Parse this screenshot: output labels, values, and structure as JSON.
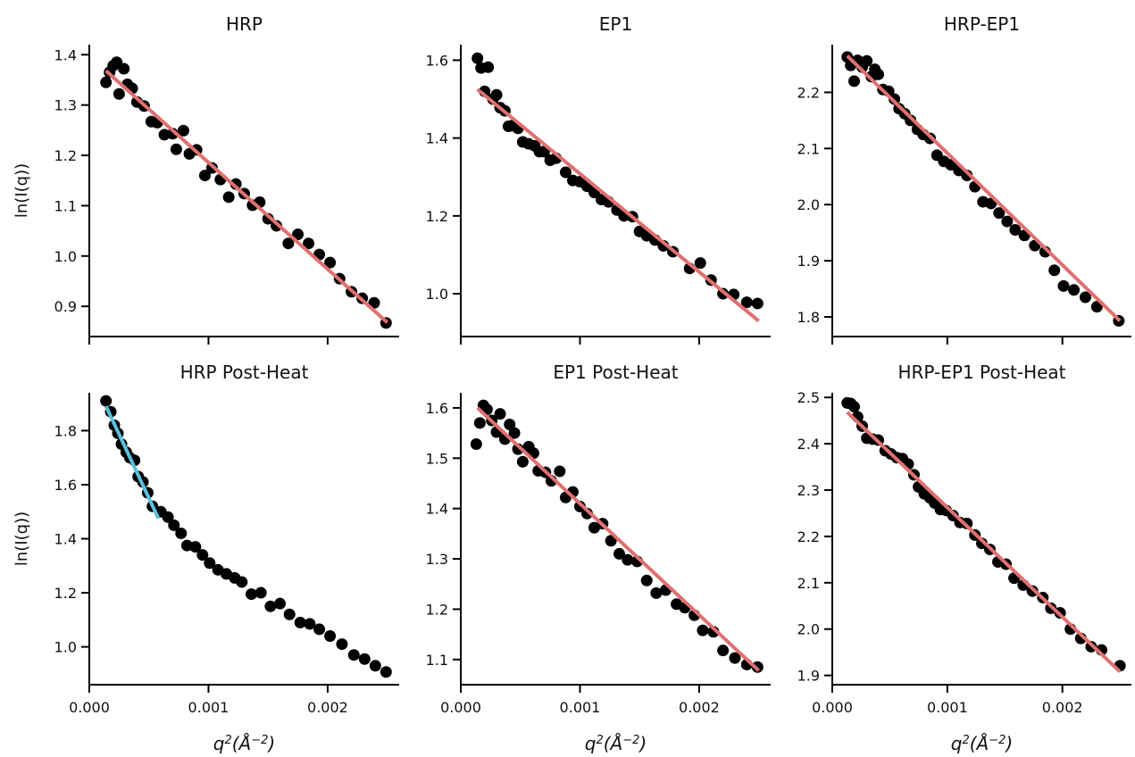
{
  "chart_data": [
    {
      "type": "scatter",
      "title": "HRP",
      "ylabel": "ln(I(q))",
      "xlabel": "",
      "xlim": [
        0.0,
        0.0026
      ],
      "ylim": [
        0.84,
        1.42
      ],
      "x_ticks": [
        0.0,
        0.001,
        0.002
      ],
      "x_tick_labels": [
        "",
        "",
        ""
      ],
      "y_ticks": [
        0.9,
        1.0,
        1.1,
        1.2,
        1.3,
        1.4
      ],
      "y_tick_labels": [
        "0.9",
        "1.0",
        "1.1",
        "1.2",
        "1.3",
        "1.4"
      ],
      "points": [
        [
          0.00014,
          1.345
        ],
        [
          0.00017,
          1.365
        ],
        [
          0.0002,
          1.378
        ],
        [
          0.00023,
          1.385
        ],
        [
          0.00025,
          1.322
        ],
        [
          0.00029,
          1.372
        ],
        [
          0.00032,
          1.341
        ],
        [
          0.00036,
          1.333
        ],
        [
          0.0004,
          1.306
        ],
        [
          0.00046,
          1.298
        ],
        [
          0.00052,
          1.267
        ],
        [
          0.00057,
          1.265
        ],
        [
          0.00063,
          1.241
        ],
        [
          0.0007,
          1.243
        ],
        [
          0.00073,
          1.212
        ],
        [
          0.00079,
          1.249
        ],
        [
          0.00084,
          1.203
        ],
        [
          0.0009,
          1.211
        ],
        [
          0.00097,
          1.16
        ],
        [
          0.00103,
          1.175
        ],
        [
          0.0011,
          1.152
        ],
        [
          0.00117,
          1.117
        ],
        [
          0.00123,
          1.143
        ],
        [
          0.0013,
          1.124
        ],
        [
          0.00137,
          1.101
        ],
        [
          0.00143,
          1.107
        ],
        [
          0.0015,
          1.074
        ],
        [
          0.00157,
          1.06
        ],
        [
          0.00167,
          1.025
        ],
        [
          0.00175,
          1.043
        ],
        [
          0.00184,
          1.025
        ],
        [
          0.00193,
          1.003
        ],
        [
          0.00202,
          0.987
        ],
        [
          0.0021,
          0.955
        ],
        [
          0.0022,
          0.929
        ],
        [
          0.00229,
          0.916
        ],
        [
          0.00239,
          0.907
        ],
        [
          0.00249,
          0.867
        ]
      ],
      "fits": [
        {
          "color": "#e07070",
          "x": [
            0.00014,
            0.0025
          ],
          "y": [
            1.368,
            0.868
          ]
        }
      ]
    },
    {
      "type": "scatter",
      "title": "EP1",
      "ylabel": "",
      "xlabel": "",
      "xlim": [
        0.0,
        0.0026
      ],
      "ylim": [
        0.89,
        1.64
      ],
      "x_ticks": [
        0.0,
        0.001,
        0.002
      ],
      "x_tick_labels": [
        "",
        "",
        ""
      ],
      "y_ticks": [
        1.0,
        1.2,
        1.4,
        1.6
      ],
      "y_tick_labels": [
        "1.0",
        "1.2",
        "1.4",
        "1.6"
      ],
      "points": [
        [
          0.00014,
          1.605
        ],
        [
          0.00017,
          1.58
        ],
        [
          0.0002,
          1.52
        ],
        [
          0.00023,
          1.582
        ],
        [
          0.00027,
          1.5
        ],
        [
          0.0003,
          1.511
        ],
        [
          0.00033,
          1.478
        ],
        [
          0.00037,
          1.47
        ],
        [
          0.0004,
          1.43
        ],
        [
          0.00043,
          1.432
        ],
        [
          0.00048,
          1.425
        ],
        [
          0.00052,
          1.39
        ],
        [
          0.00057,
          1.385
        ],
        [
          0.00062,
          1.38
        ],
        [
          0.00066,
          1.365
        ],
        [
          0.0007,
          1.365
        ],
        [
          0.00075,
          1.343
        ],
        [
          0.0008,
          1.348
        ],
        [
          0.00088,
          1.312
        ],
        [
          0.00094,
          1.291
        ],
        [
          0.001,
          1.288
        ],
        [
          0.00106,
          1.276
        ],
        [
          0.00112,
          1.26
        ],
        [
          0.00118,
          1.242
        ],
        [
          0.00124,
          1.236
        ],
        [
          0.00131,
          1.215
        ],
        [
          0.00137,
          1.2
        ],
        [
          0.00144,
          1.198
        ],
        [
          0.0015,
          1.16
        ],
        [
          0.00156,
          1.149
        ],
        [
          0.00163,
          1.138
        ],
        [
          0.0017,
          1.123
        ],
        [
          0.00178,
          1.108
        ],
        [
          0.00192,
          1.065
        ],
        [
          0.00201,
          1.079
        ],
        [
          0.0021,
          1.035
        ],
        [
          0.0022,
          1.0
        ],
        [
          0.00229,
          0.998
        ],
        [
          0.0024,
          0.978
        ],
        [
          0.00249,
          0.975
        ]
      ],
      "fits": [
        {
          "color": "#e07070",
          "x": [
            0.00014,
            0.0025
          ],
          "y": [
            1.525,
            0.93
          ]
        }
      ]
    },
    {
      "type": "scatter",
      "title": "HRP-EP1",
      "ylabel": "",
      "xlabel": "",
      "xlim": [
        0.0,
        0.0026
      ],
      "ylim": [
        1.765,
        2.285
      ],
      "x_ticks": [
        0.0,
        0.001,
        0.002
      ],
      "x_tick_labels": [
        "",
        "",
        ""
      ],
      "y_ticks": [
        1.8,
        1.9,
        2.0,
        2.1,
        2.2
      ],
      "y_tick_labels": [
        "1.8",
        "1.9",
        "2.0",
        "2.1",
        "2.2"
      ],
      "points": [
        [
          0.00013,
          2.263
        ],
        [
          0.00016,
          2.248
        ],
        [
          0.00019,
          2.22
        ],
        [
          0.00022,
          2.257
        ],
        [
          0.00026,
          2.245
        ],
        [
          0.0003,
          2.256
        ],
        [
          0.00034,
          2.228
        ],
        [
          0.00037,
          2.241
        ],
        [
          0.0004,
          2.232
        ],
        [
          0.00044,
          2.205
        ],
        [
          0.00049,
          2.202
        ],
        [
          0.00054,
          2.188
        ],
        [
          0.00058,
          2.171
        ],
        [
          0.00063,
          2.162
        ],
        [
          0.00068,
          2.15
        ],
        [
          0.00074,
          2.134
        ],
        [
          0.00079,
          2.125
        ],
        [
          0.00085,
          2.118
        ],
        [
          0.00091,
          2.088
        ],
        [
          0.00097,
          2.077
        ],
        [
          0.00103,
          2.071
        ],
        [
          0.0011,
          2.061
        ],
        [
          0.00117,
          2.052
        ],
        [
          0.00124,
          2.032
        ],
        [
          0.00131,
          2.005
        ],
        [
          0.00138,
          2.002
        ],
        [
          0.00145,
          1.985
        ],
        [
          0.00152,
          1.97
        ],
        [
          0.00159,
          1.955
        ],
        [
          0.00167,
          1.945
        ],
        [
          0.00176,
          1.927
        ],
        [
          0.00185,
          1.916
        ],
        [
          0.00193,
          1.883
        ],
        [
          0.00201,
          1.855
        ],
        [
          0.0021,
          1.848
        ],
        [
          0.0022,
          1.835
        ],
        [
          0.0023,
          1.818
        ],
        [
          0.00249,
          1.793
        ]
      ],
      "fits": [
        {
          "color": "#e07070",
          "x": [
            0.00013,
            0.0025
          ],
          "y": [
            2.265,
            1.793
          ]
        }
      ]
    },
    {
      "type": "scatter",
      "title": "HRP Post-Heat",
      "ylabel": "ln(I(q))",
      "xlabel": "q²(Å⁻²)",
      "xlim": [
        0.0,
        0.0026
      ],
      "ylim": [
        0.86,
        1.94
      ],
      "x_ticks": [
        0.0,
        0.001,
        0.002
      ],
      "x_tick_labels": [
        "0.000",
        "0.001",
        "0.002"
      ],
      "y_ticks": [
        1.0,
        1.2,
        1.4,
        1.6,
        1.8
      ],
      "y_tick_labels": [
        "1.0",
        "1.2",
        "1.4",
        "1.6",
        "1.8"
      ],
      "points": [
        [
          0.00014,
          1.91
        ],
        [
          0.00018,
          1.87
        ],
        [
          0.00021,
          1.82
        ],
        [
          0.00024,
          1.79
        ],
        [
          0.00027,
          1.75
        ],
        [
          0.00031,
          1.72
        ],
        [
          0.00034,
          1.7
        ],
        [
          0.00038,
          1.69
        ],
        [
          0.00041,
          1.63
        ],
        [
          0.00045,
          1.61
        ],
        [
          0.00049,
          1.57
        ],
        [
          0.00053,
          1.52
        ],
        [
          0.0006,
          1.5
        ],
        [
          0.00066,
          1.48
        ],
        [
          0.00071,
          1.45
        ],
        [
          0.00077,
          1.42
        ],
        [
          0.00082,
          1.375
        ],
        [
          0.00089,
          1.37
        ],
        [
          0.00095,
          1.34
        ],
        [
          0.00101,
          1.31
        ],
        [
          0.00108,
          1.285
        ],
        [
          0.00115,
          1.27
        ],
        [
          0.00122,
          1.255
        ],
        [
          0.00128,
          1.24
        ],
        [
          0.00136,
          1.195
        ],
        [
          0.00144,
          1.2
        ],
        [
          0.00152,
          1.15
        ],
        [
          0.0016,
          1.16
        ],
        [
          0.00168,
          1.12
        ],
        [
          0.00177,
          1.09
        ],
        [
          0.00185,
          1.085
        ],
        [
          0.00193,
          1.065
        ],
        [
          0.00202,
          1.04
        ],
        [
          0.00212,
          1.01
        ],
        [
          0.00222,
          0.97
        ],
        [
          0.00231,
          0.955
        ],
        [
          0.0024,
          0.93
        ],
        [
          0.00249,
          0.907
        ]
      ],
      "fits": [
        {
          "color": "#5bc0de",
          "x": [
            0.00014,
            0.00058
          ],
          "y": [
            1.89,
            1.475
          ]
        }
      ]
    },
    {
      "type": "scatter",
      "title": "EP1 Post-Heat",
      "ylabel": "",
      "xlabel": "q²(Å⁻²)",
      "xlim": [
        0.0,
        0.0026
      ],
      "ylim": [
        1.05,
        1.63
      ],
      "x_ticks": [
        0.0,
        0.001,
        0.002
      ],
      "x_tick_labels": [
        "0.000",
        "0.001",
        "0.002"
      ],
      "y_ticks": [
        1.1,
        1.2,
        1.3,
        1.4,
        1.5,
        1.6
      ],
      "y_tick_labels": [
        "1.1",
        "1.2",
        "1.3",
        "1.4",
        "1.5",
        "1.6"
      ],
      "points": [
        [
          0.00013,
          1.528
        ],
        [
          0.00016,
          1.57
        ],
        [
          0.00019,
          1.605
        ],
        [
          0.00022,
          1.597
        ],
        [
          0.00026,
          1.575
        ],
        [
          0.0003,
          1.552
        ],
        [
          0.00033,
          1.588
        ],
        [
          0.00037,
          1.538
        ],
        [
          0.00041,
          1.567
        ],
        [
          0.00045,
          1.55
        ],
        [
          0.00048,
          1.518
        ],
        [
          0.00052,
          1.493
        ],
        [
          0.00057,
          1.523
        ],
        [
          0.00061,
          1.51
        ],
        [
          0.00065,
          1.475
        ],
        [
          0.00071,
          1.472
        ],
        [
          0.00076,
          1.455
        ],
        [
          0.00083,
          1.474
        ],
        [
          0.00088,
          1.422
        ],
        [
          0.00094,
          1.433
        ],
        [
          0.001,
          1.404
        ],
        [
          0.00106,
          1.39
        ],
        [
          0.00112,
          1.362
        ],
        [
          0.00119,
          1.37
        ],
        [
          0.00126,
          1.336
        ],
        [
          0.00133,
          1.31
        ],
        [
          0.0014,
          1.298
        ],
        [
          0.00148,
          1.295
        ],
        [
          0.00156,
          1.257
        ],
        [
          0.00164,
          1.232
        ],
        [
          0.00172,
          1.238
        ],
        [
          0.00181,
          1.21
        ],
        [
          0.00188,
          1.203
        ],
        [
          0.00196,
          1.188
        ],
        [
          0.00203,
          1.158
        ],
        [
          0.00212,
          1.155
        ],
        [
          0.0022,
          1.118
        ],
        [
          0.0023,
          1.103
        ],
        [
          0.0024,
          1.09
        ],
        [
          0.00249,
          1.085
        ]
      ],
      "fits": [
        {
          "color": "#e07070",
          "x": [
            0.00014,
            0.0025
          ],
          "y": [
            1.6,
            1.078
          ]
        }
      ]
    },
    {
      "type": "scatter",
      "title": "HRP-EP1 Post-Heat",
      "ylabel": "",
      "xlabel": "q²(Å⁻²)",
      "xlim": [
        0.0,
        0.0026
      ],
      "ylim": [
        1.88,
        2.51
      ],
      "x_ticks": [
        0.0,
        0.001,
        0.002
      ],
      "x_tick_labels": [
        "0.000",
        "0.001",
        "0.002"
      ],
      "y_ticks": [
        1.9,
        2.0,
        2.1,
        2.2,
        2.3,
        2.4,
        2.5
      ],
      "y_tick_labels": [
        "1.9",
        "2.0",
        "2.1",
        "2.2",
        "2.3",
        "2.4",
        "2.5"
      ],
      "points": [
        [
          0.00013,
          2.488
        ],
        [
          0.00016,
          2.487
        ],
        [
          0.00019,
          2.48
        ],
        [
          0.00022,
          2.458
        ],
        [
          0.00026,
          2.438
        ],
        [
          0.0003,
          2.412
        ],
        [
          0.00035,
          2.41
        ],
        [
          0.0004,
          2.408
        ],
        [
          0.00046,
          2.385
        ],
        [
          0.00051,
          2.378
        ],
        [
          0.00056,
          2.37
        ],
        [
          0.00061,
          2.368
        ],
        [
          0.00066,
          2.356
        ],
        [
          0.00071,
          2.333
        ],
        [
          0.00075,
          2.307
        ],
        [
          0.0008,
          2.292
        ],
        [
          0.00085,
          2.283
        ],
        [
          0.00089,
          2.272
        ],
        [
          0.00094,
          2.258
        ],
        [
          0.00099,
          2.256
        ],
        [
          0.00105,
          2.245
        ],
        [
          0.00111,
          2.23
        ],
        [
          0.00117,
          2.228
        ],
        [
          0.00124,
          2.203
        ],
        [
          0.0013,
          2.185
        ],
        [
          0.00137,
          2.172
        ],
        [
          0.00144,
          2.145
        ],
        [
          0.00151,
          2.14
        ],
        [
          0.00158,
          2.11
        ],
        [
          0.00166,
          2.095
        ],
        [
          0.00174,
          2.082
        ],
        [
          0.00183,
          2.068
        ],
        [
          0.0019,
          2.045
        ],
        [
          0.00198,
          2.035
        ],
        [
          0.00207,
          2.0
        ],
        [
          0.00216,
          1.98
        ],
        [
          0.00225,
          1.962
        ],
        [
          0.00234,
          1.955
        ],
        [
          0.0025,
          1.921
        ]
      ],
      "fits": [
        {
          "color": "#e07070",
          "x": [
            0.00013,
            0.0025
          ],
          "y": [
            2.468,
            1.908
          ]
        }
      ]
    }
  ]
}
